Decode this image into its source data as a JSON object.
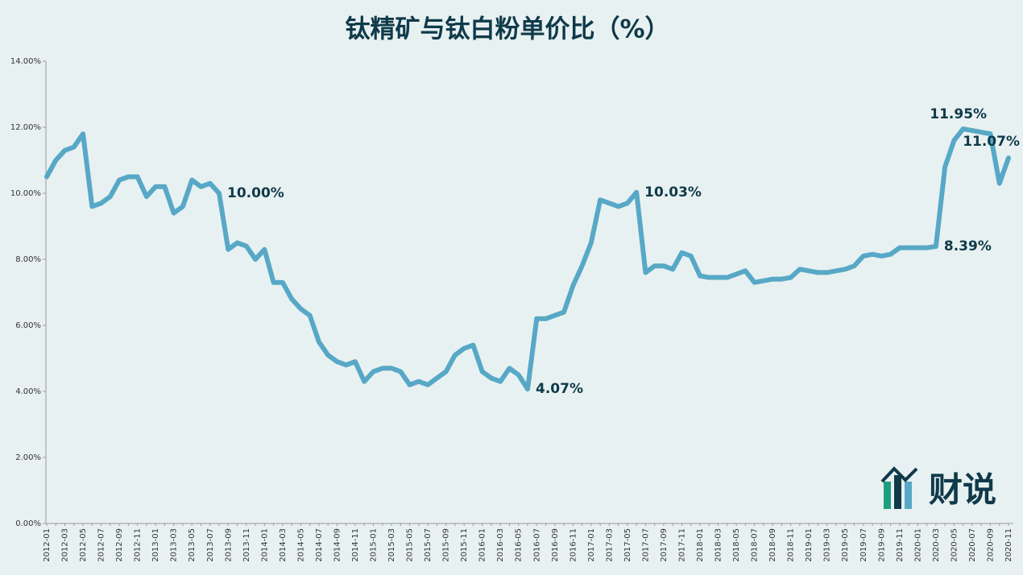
{
  "chart_data": {
    "type": "line",
    "title": "钛精矿与钛白粉单价比（%）",
    "logo_text": "财说",
    "categories": [
      "2012-01",
      null,
      "2012-03",
      null,
      "2012-05",
      null,
      "2012-07",
      null,
      "2012-09",
      null,
      "2012-11",
      null,
      "2013-01",
      null,
      "2013-03",
      null,
      "2013-05",
      null,
      "2013-07",
      null,
      "2013-09",
      null,
      "2013-11",
      null,
      "2014-01",
      null,
      "2014-03",
      null,
      "2014-05",
      null,
      "2014-07",
      null,
      "2014-09",
      null,
      "2014-11",
      null,
      "2015-01",
      null,
      "2015-03",
      null,
      "2015-05",
      null,
      "2015-07",
      null,
      "2015-09",
      null,
      "2015-11",
      null,
      "2016-01",
      null,
      "2016-03",
      null,
      "2016-05",
      null,
      "2016-07",
      null,
      "2016-09",
      null,
      "2016-11",
      null,
      "2017-01",
      null,
      "2017-03",
      null,
      "2017-05",
      null,
      "2017-07",
      null,
      "2017-09",
      null,
      "2017-11",
      null,
      "2018-01",
      null,
      "2018-03",
      null,
      "2018-05",
      null,
      "2018-07",
      null,
      "2018-09",
      null,
      "2018-11",
      null,
      "2019-01",
      null,
      "2019-03",
      null,
      "2019-05",
      null,
      "2019-07",
      null,
      "2019-09",
      null,
      "2019-11",
      null,
      "2020-01",
      null,
      "2020-03",
      null,
      "2020-05",
      null,
      "2020-07",
      null,
      "2020-09",
      null,
      "2020-11"
    ],
    "series": [
      {
        "color": "#57a8c6",
        "values": [
          10.5,
          11.0,
          11.3,
          11.4,
          11.8,
          9.6,
          9.7,
          9.9,
          10.4,
          10.5,
          10.5,
          9.9,
          10.2,
          10.2,
          9.4,
          9.6,
          10.4,
          10.2,
          10.3,
          10.0,
          8.3,
          8.5,
          8.4,
          8.0,
          8.3,
          7.3,
          7.3,
          6.8,
          6.5,
          6.3,
          5.5,
          5.1,
          4.9,
          4.8,
          4.9,
          4.3,
          4.6,
          4.7,
          4.7,
          4.6,
          4.2,
          4.3,
          4.2,
          4.4,
          4.6,
          5.1,
          5.3,
          5.4,
          4.6,
          4.4,
          4.3,
          4.7,
          4.5,
          4.07,
          6.2,
          6.2,
          6.3,
          6.4,
          7.2,
          7.8,
          8.5,
          9.8,
          9.7,
          9.6,
          9.7,
          10.03,
          7.6,
          7.8,
          7.8,
          7.7,
          8.2,
          8.1,
          7.5,
          7.45,
          7.45,
          7.45,
          7.55,
          7.65,
          7.3,
          7.35,
          7.4,
          7.4,
          7.45,
          7.7,
          7.65,
          7.6,
          7.6,
          7.65,
          7.7,
          7.8,
          8.1,
          8.15,
          8.1,
          8.15,
          8.35,
          8.35,
          8.35,
          8.35,
          8.39,
          10.8,
          11.6,
          11.95,
          11.9,
          11.85,
          11.8,
          10.3,
          11.07
        ],
        "value_labels": [
          null,
          null,
          null,
          null,
          null,
          null,
          null,
          null,
          null,
          null,
          null,
          null,
          null,
          null,
          null,
          null,
          null,
          null,
          null,
          "10.00%",
          null,
          null,
          null,
          null,
          null,
          null,
          null,
          null,
          null,
          null,
          null,
          null,
          null,
          null,
          null,
          null,
          null,
          null,
          null,
          null,
          null,
          null,
          null,
          null,
          null,
          null,
          null,
          null,
          null,
          null,
          null,
          null,
          null,
          "4.07%",
          null,
          null,
          null,
          null,
          null,
          null,
          null,
          null,
          null,
          null,
          null,
          "10.03%",
          null,
          null,
          null,
          null,
          null,
          null,
          null,
          null,
          null,
          null,
          null,
          null,
          null,
          null,
          null,
          null,
          null,
          null,
          null,
          null,
          null,
          null,
          null,
          null,
          null,
          null,
          null,
          null,
          null,
          null,
          null,
          null,
          "8.39%",
          null,
          null,
          "11.95%",
          null,
          null,
          null,
          null,
          "11.07%"
        ]
      }
    ],
    "ylim": [
      0,
      14
    ],
    "yticks": [
      {
        "value": 0,
        "label": "0.00%"
      },
      {
        "value": 2,
        "label": "2.00%"
      },
      {
        "value": 4,
        "label": "4.00%"
      },
      {
        "value": 6,
        "label": "6.00%"
      },
      {
        "value": 8,
        "label": "8.00%"
      },
      {
        "value": 10,
        "label": "10.00%"
      },
      {
        "value": 12,
        "label": "12.00%"
      },
      {
        "value": 14,
        "label": "14.00%"
      }
    ],
    "grid": false
  }
}
